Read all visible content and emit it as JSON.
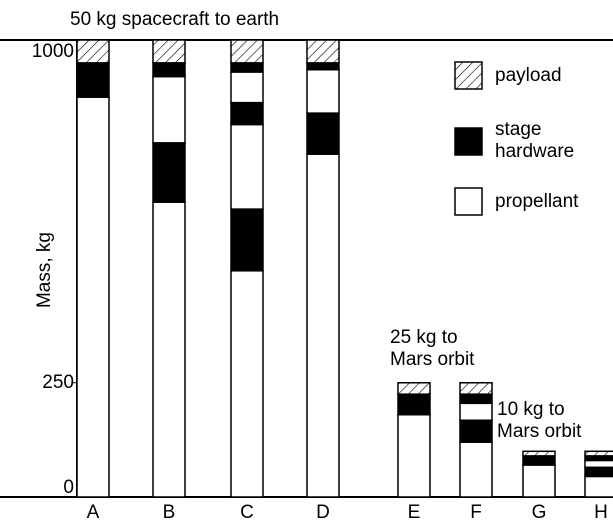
{
  "chart_data": {
    "type": "stacked-bar",
    "title": "50 kg spacecraft to earth",
    "ylabel": "Mass, kg",
    "categories": [
      "A",
      "B",
      "C",
      "D",
      "E",
      "F",
      "G",
      "H"
    ],
    "series": [
      {
        "name": "payload",
        "color": "#ffffff"
      },
      {
        "name": "stage hardware",
        "color": "#000000"
      },
      {
        "name": "propellant",
        "color": "#ffffff"
      }
    ],
    "stacks": [
      [
        875,
        75,
        50
      ],
      [
        645,
        130,
        145,
        30,
        50
      ],
      [
        495,
        135,
        185,
        48,
        67,
        20,
        50
      ],
      [
        750,
        90,
        95,
        15,
        50
      ],
      [
        180,
        45,
        25
      ],
      [
        120,
        48,
        37,
        20,
        25
      ],
      [
        70,
        20,
        10
      ],
      [
        45,
        20,
        15,
        10,
        10
      ]
    ],
    "annotations": [
      {
        "lines": [
          "25 kg to",
          "Mars orbit"
        ]
      },
      {
        "lines": [
          "10 kg to",
          "Mars orbit"
        ]
      }
    ],
    "ylim": [
      0,
      1000
    ],
    "yticks": [
      0,
      250,
      1000
    ]
  }
}
